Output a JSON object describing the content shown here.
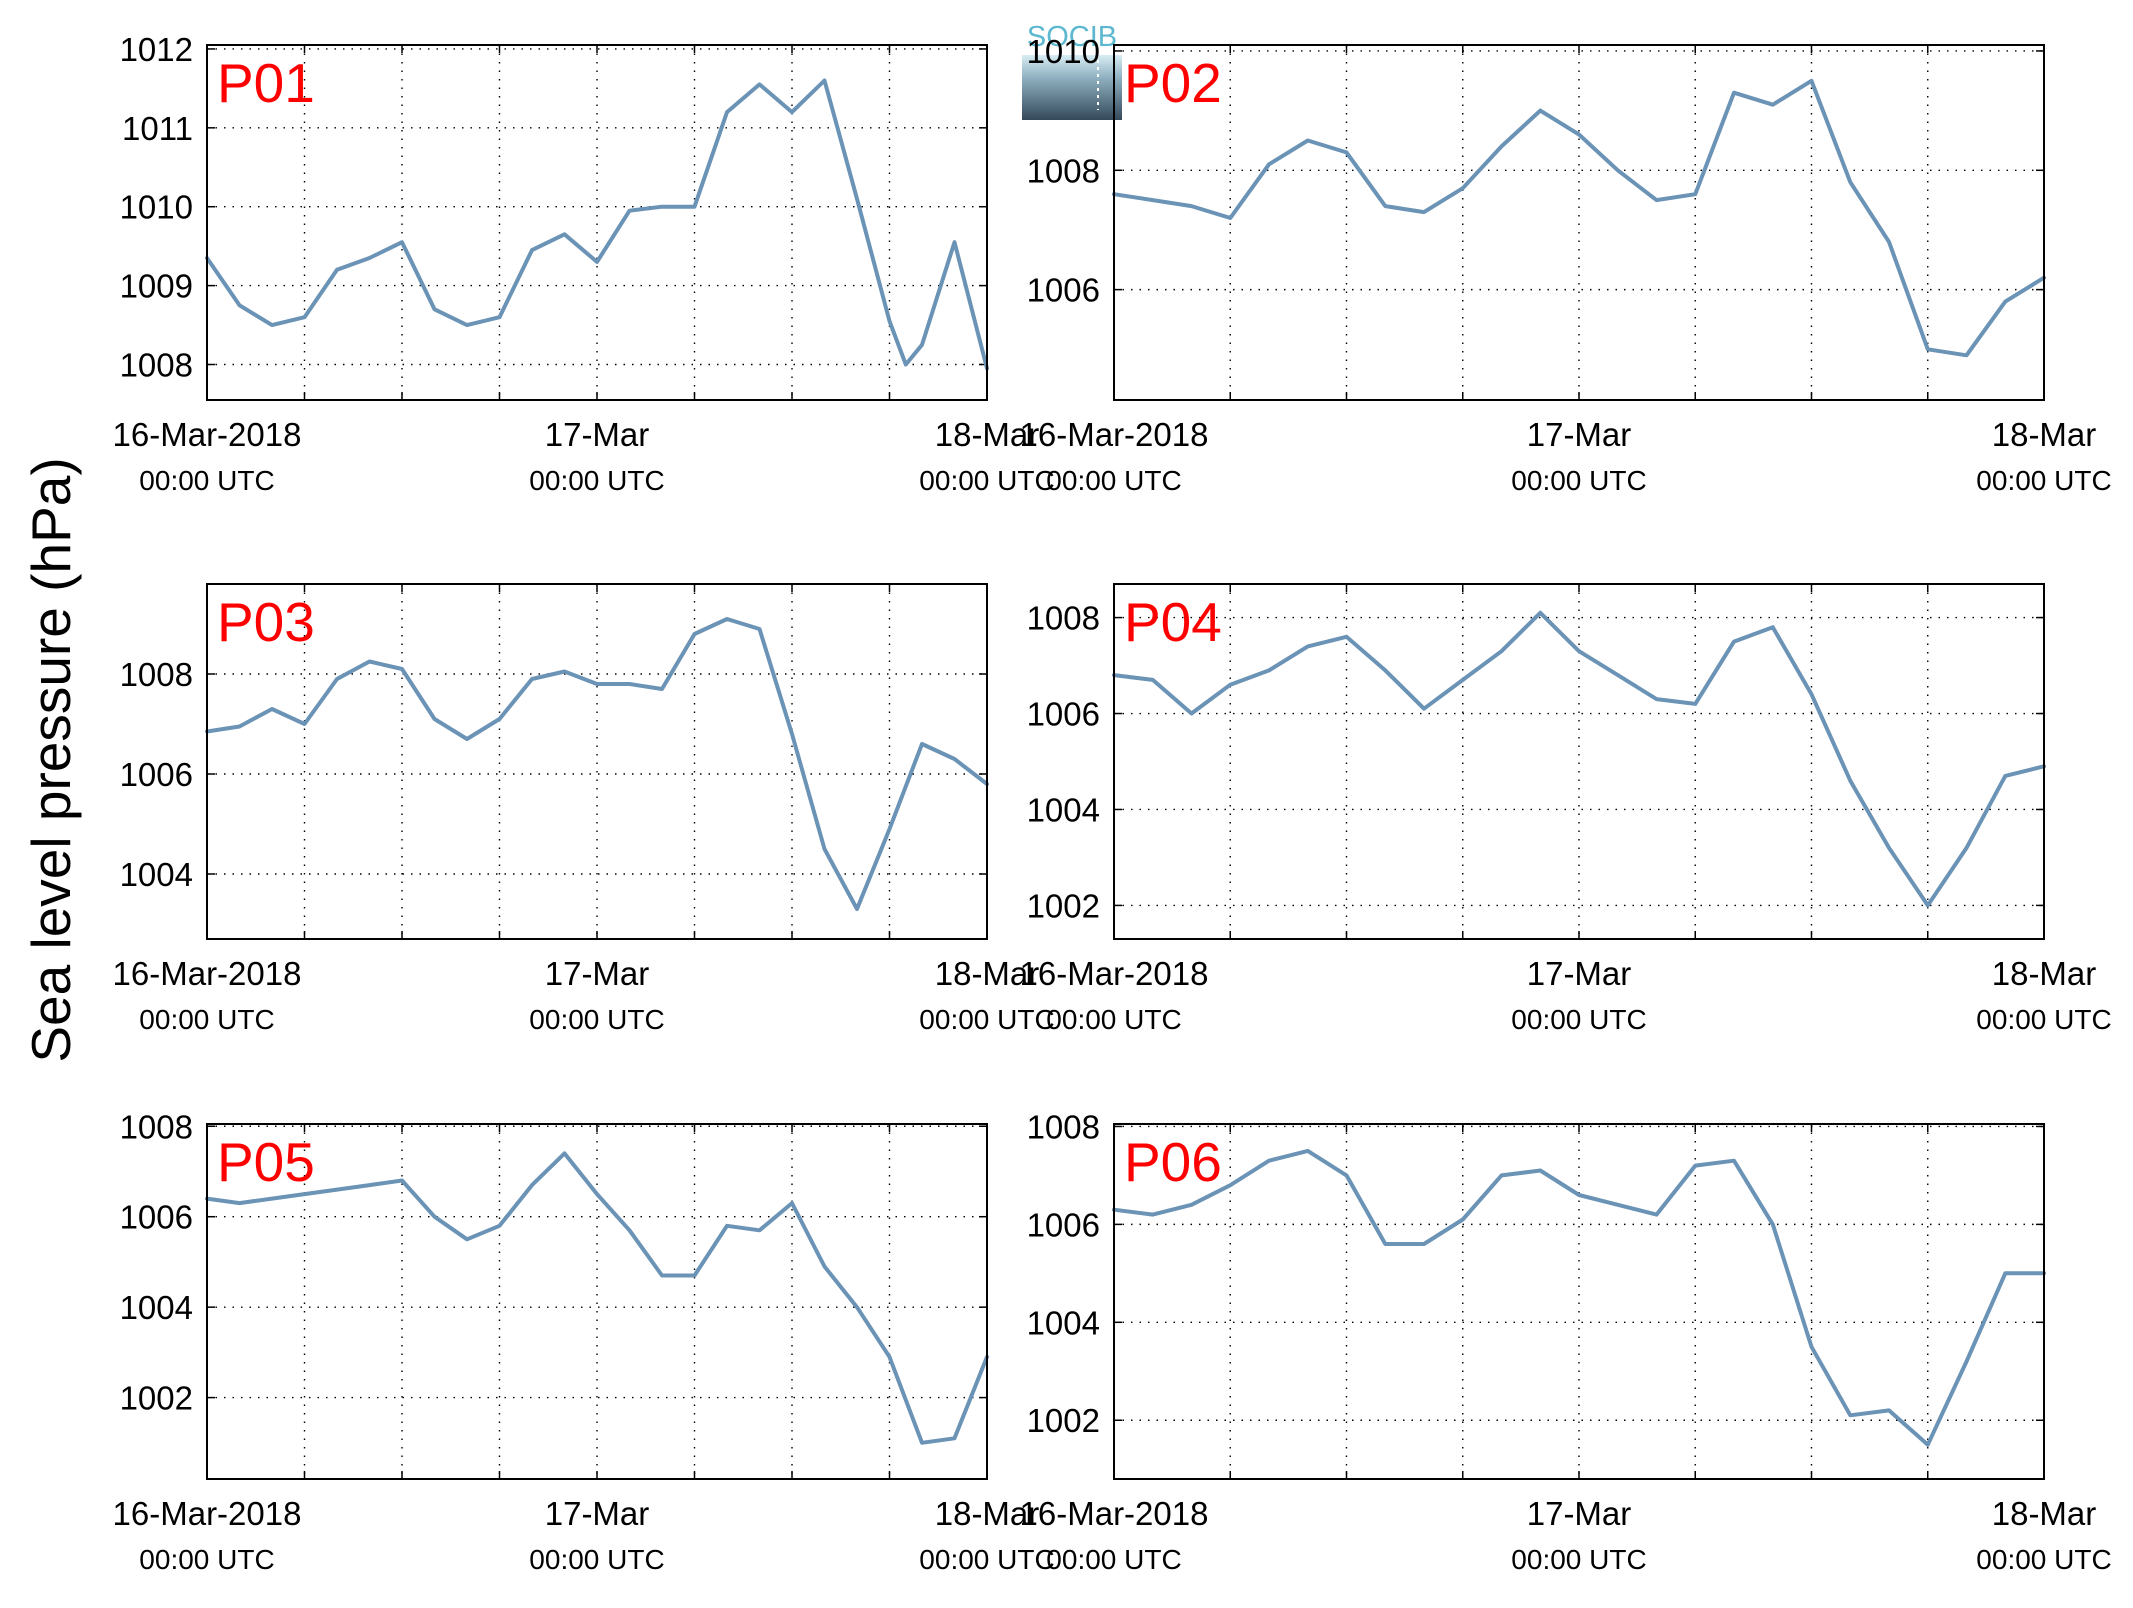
{
  "ylabel": "Sea level pressure (hPa)",
  "logo": {
    "text": "SOCIB"
  },
  "line_color": "#6b93b6",
  "label_color": "#ff0000",
  "chart_data": [
    {
      "type": "line",
      "panel": "P01",
      "x_ticks": [
        "16-Mar-2018",
        "17-Mar",
        "18-Mar"
      ],
      "x_subticks": [
        "00:00 UTC",
        "00:00 UTC",
        "00:00 UTC"
      ],
      "xlim": [
        "2018-03-16 00:00",
        "2018-03-18 00:00"
      ],
      "ylim": [
        1007.55,
        1012.05
      ],
      "yticks": [
        1008,
        1009,
        1010,
        1011,
        1012
      ],
      "grid": true,
      "series": [
        {
          "x": [
            "2018-03-16 00:00",
            "2018-03-16 02:00",
            "2018-03-16 04:00",
            "2018-03-16 06:00",
            "2018-03-16 08:00",
            "2018-03-16 10:00",
            "2018-03-16 12:00",
            "2018-03-16 14:00",
            "2018-03-16 16:00",
            "2018-03-16 18:00",
            "2018-03-16 20:00",
            "2018-03-16 22:00",
            "2018-03-17 00:00",
            "2018-03-17 02:00",
            "2018-03-17 04:00",
            "2018-03-17 06:00",
            "2018-03-17 08:00",
            "2018-03-17 10:00",
            "2018-03-17 12:00",
            "2018-03-17 14:00",
            "2018-03-17 16:00",
            "2018-03-17 18:00",
            "2018-03-17 19:00",
            "2018-03-17 20:00",
            "2018-03-17 22:00",
            "2018-03-18 00:00"
          ],
          "y": [
            1009.35,
            1008.75,
            1008.5,
            1008.6,
            1009.2,
            1009.35,
            1009.55,
            1008.7,
            1008.5,
            1008.6,
            1009.45,
            1009.65,
            1009.3,
            1009.95,
            1010.0,
            1010.0,
            1011.2,
            1011.55,
            1011.2,
            1011.6,
            1010.1,
            1008.55,
            1008.0,
            1008.25,
            1009.55,
            1007.95
          ]
        }
      ]
    },
    {
      "type": "line",
      "panel": "P02",
      "x_ticks": [
        "16-Mar-2018",
        "17-Mar",
        "18-Mar"
      ],
      "x_subticks": [
        "00:00 UTC",
        "00:00 UTC",
        "00:00 UTC"
      ],
      "xlim": [
        "2018-03-16 00:00",
        "2018-03-18 00:00"
      ],
      "ylim": [
        1004.15,
        1010.1
      ],
      "yticks": [
        1006,
        1008,
        1010
      ],
      "grid": true,
      "series": [
        {
          "x": [
            "2018-03-16 00:00",
            "2018-03-16 02:00",
            "2018-03-16 04:00",
            "2018-03-16 06:00",
            "2018-03-16 08:00",
            "2018-03-16 10:00",
            "2018-03-16 12:00",
            "2018-03-16 14:00",
            "2018-03-16 16:00",
            "2018-03-16 18:00",
            "2018-03-16 20:00",
            "2018-03-16 22:00",
            "2018-03-17 00:00",
            "2018-03-17 02:00",
            "2018-03-17 04:00",
            "2018-03-17 06:00",
            "2018-03-17 08:00",
            "2018-03-17 10:00",
            "2018-03-17 12:00",
            "2018-03-17 14:00",
            "2018-03-17 16:00",
            "2018-03-17 18:00",
            "2018-03-17 20:00",
            "2018-03-17 22:00",
            "2018-03-18 00:00"
          ],
          "y": [
            1007.6,
            1007.5,
            1007.4,
            1007.2,
            1008.1,
            1008.5,
            1008.3,
            1007.4,
            1007.3,
            1007.7,
            1008.4,
            1009.0,
            1008.6,
            1008.0,
            1007.5,
            1007.6,
            1009.3,
            1009.1,
            1009.5,
            1007.8,
            1006.8,
            1005.0,
            1004.9,
            1005.8,
            1006.2
          ]
        }
      ]
    },
    {
      "type": "line",
      "panel": "P03",
      "x_ticks": [
        "16-Mar-2018",
        "17-Mar",
        "18-Mar"
      ],
      "x_subticks": [
        "00:00 UTC",
        "00:00 UTC",
        "00:00 UTC"
      ],
      "xlim": [
        "2018-03-16 00:00",
        "2018-03-18 00:00"
      ],
      "ylim": [
        1002.7,
        1009.8
      ],
      "yticks": [
        1004,
        1006,
        1008
      ],
      "grid": true,
      "series": [
        {
          "x": [
            "2018-03-16 00:00",
            "2018-03-16 02:00",
            "2018-03-16 04:00",
            "2018-03-16 06:00",
            "2018-03-16 08:00",
            "2018-03-16 10:00",
            "2018-03-16 12:00",
            "2018-03-16 14:00",
            "2018-03-16 16:00",
            "2018-03-16 18:00",
            "2018-03-16 20:00",
            "2018-03-16 22:00",
            "2018-03-17 00:00",
            "2018-03-17 02:00",
            "2018-03-17 04:00",
            "2018-03-17 06:00",
            "2018-03-17 08:00",
            "2018-03-17 10:00",
            "2018-03-17 12:00",
            "2018-03-17 14:00",
            "2018-03-17 16:00",
            "2018-03-17 18:00",
            "2018-03-17 20:00",
            "2018-03-17 22:00",
            "2018-03-18 00:00"
          ],
          "y": [
            1006.85,
            1006.95,
            1007.3,
            1007.0,
            1007.9,
            1008.25,
            1008.1,
            1007.1,
            1006.7,
            1007.1,
            1007.9,
            1008.05,
            1007.8,
            1007.8,
            1007.7,
            1008.8,
            1009.1,
            1008.9,
            1006.8,
            1004.5,
            1003.3,
            1004.9,
            1006.6,
            1006.3,
            1005.8
          ]
        }
      ]
    },
    {
      "type": "line",
      "panel": "P04",
      "x_ticks": [
        "16-Mar-2018",
        "17-Mar",
        "18-Mar"
      ],
      "x_subticks": [
        "00:00 UTC",
        "00:00 UTC",
        "00:00 UTC"
      ],
      "xlim": [
        "2018-03-16 00:00",
        "2018-03-18 00:00"
      ],
      "ylim": [
        1001.3,
        1008.7
      ],
      "yticks": [
        1002,
        1004,
        1006,
        1008
      ],
      "grid": true,
      "series": [
        {
          "x": [
            "2018-03-16 00:00",
            "2018-03-16 02:00",
            "2018-03-16 04:00",
            "2018-03-16 06:00",
            "2018-03-16 08:00",
            "2018-03-16 10:00",
            "2018-03-16 12:00",
            "2018-03-16 14:00",
            "2018-03-16 16:00",
            "2018-03-16 18:00",
            "2018-03-16 20:00",
            "2018-03-16 22:00",
            "2018-03-17 00:00",
            "2018-03-17 02:00",
            "2018-03-17 04:00",
            "2018-03-17 06:00",
            "2018-03-17 08:00",
            "2018-03-17 10:00",
            "2018-03-17 12:00",
            "2018-03-17 14:00",
            "2018-03-17 16:00",
            "2018-03-17 18:00",
            "2018-03-17 20:00",
            "2018-03-17 22:00",
            "2018-03-18 00:00"
          ],
          "y": [
            1006.8,
            1006.7,
            1006.0,
            1006.6,
            1006.9,
            1007.4,
            1007.6,
            1006.9,
            1006.1,
            1006.7,
            1007.3,
            1008.1,
            1007.3,
            1006.8,
            1006.3,
            1006.2,
            1007.5,
            1007.8,
            1006.4,
            1004.6,
            1003.2,
            1002.0,
            1003.2,
            1004.7,
            1004.9
          ]
        }
      ]
    },
    {
      "type": "line",
      "panel": "P05",
      "x_ticks": [
        "16-Mar-2018",
        "17-Mar",
        "18-Mar"
      ],
      "x_subticks": [
        "00:00 UTC",
        "00:00 UTC",
        "00:00 UTC"
      ],
      "xlim": [
        "2018-03-16 00:00",
        "2018-03-18 00:00"
      ],
      "ylim": [
        1000.2,
        1008.05
      ],
      "yticks": [
        1002,
        1004,
        1006,
        1008
      ],
      "grid": true,
      "series": [
        {
          "x": [
            "2018-03-16 00:00",
            "2018-03-16 02:00",
            "2018-03-16 04:00",
            "2018-03-16 06:00",
            "2018-03-16 08:00",
            "2018-03-16 10:00",
            "2018-03-16 12:00",
            "2018-03-16 14:00",
            "2018-03-16 16:00",
            "2018-03-16 18:00",
            "2018-03-16 20:00",
            "2018-03-16 22:00",
            "2018-03-17 00:00",
            "2018-03-17 02:00",
            "2018-03-17 04:00",
            "2018-03-17 06:00",
            "2018-03-17 08:00",
            "2018-03-17 10:00",
            "2018-03-17 12:00",
            "2018-03-17 14:00",
            "2018-03-17 16:00",
            "2018-03-17 18:00",
            "2018-03-17 20:00",
            "2018-03-17 22:00",
            "2018-03-18 00:00"
          ],
          "y": [
            1006.4,
            1006.3,
            1006.4,
            1006.5,
            1006.6,
            1006.7,
            1006.8,
            1006.0,
            1005.5,
            1005.8,
            1006.7,
            1007.4,
            1006.5,
            1005.7,
            1004.7,
            1004.7,
            1005.8,
            1005.7,
            1006.3,
            1004.9,
            1004.0,
            1002.9,
            1001.0,
            1001.1,
            1002.9
          ]
        }
      ]
    },
    {
      "type": "line",
      "panel": "P06",
      "x_ticks": [
        "16-Mar-2018",
        "17-Mar",
        "18-Mar"
      ],
      "x_subticks": [
        "00:00 UTC",
        "00:00 UTC",
        "00:00 UTC"
      ],
      "xlim": [
        "2018-03-16 00:00",
        "2018-03-18 00:00"
      ],
      "ylim": [
        1000.8,
        1008.05
      ],
      "yticks": [
        1002,
        1004,
        1006,
        1008
      ],
      "grid": true,
      "series": [
        {
          "x": [
            "2018-03-16 00:00",
            "2018-03-16 02:00",
            "2018-03-16 04:00",
            "2018-03-16 06:00",
            "2018-03-16 08:00",
            "2018-03-16 10:00",
            "2018-03-16 12:00",
            "2018-03-16 14:00",
            "2018-03-16 16:00",
            "2018-03-16 18:00",
            "2018-03-16 20:00",
            "2018-03-16 22:00",
            "2018-03-17 00:00",
            "2018-03-17 02:00",
            "2018-03-17 04:00",
            "2018-03-17 06:00",
            "2018-03-17 08:00",
            "2018-03-17 10:00",
            "2018-03-17 12:00",
            "2018-03-17 14:00",
            "2018-03-17 16:00",
            "2018-03-17 18:00",
            "2018-03-17 20:00",
            "2018-03-17 22:00",
            "2018-03-18 00:00"
          ],
          "y": [
            1006.3,
            1006.2,
            1006.4,
            1006.8,
            1007.3,
            1007.5,
            1007.0,
            1005.6,
            1005.6,
            1006.1,
            1007.0,
            1007.1,
            1006.6,
            1006.4,
            1006.2,
            1007.2,
            1007.3,
            1006.0,
            1003.5,
            1002.1,
            1002.2,
            1001.5,
            1003.2,
            1005.0,
            1005.0
          ]
        }
      ]
    }
  ]
}
